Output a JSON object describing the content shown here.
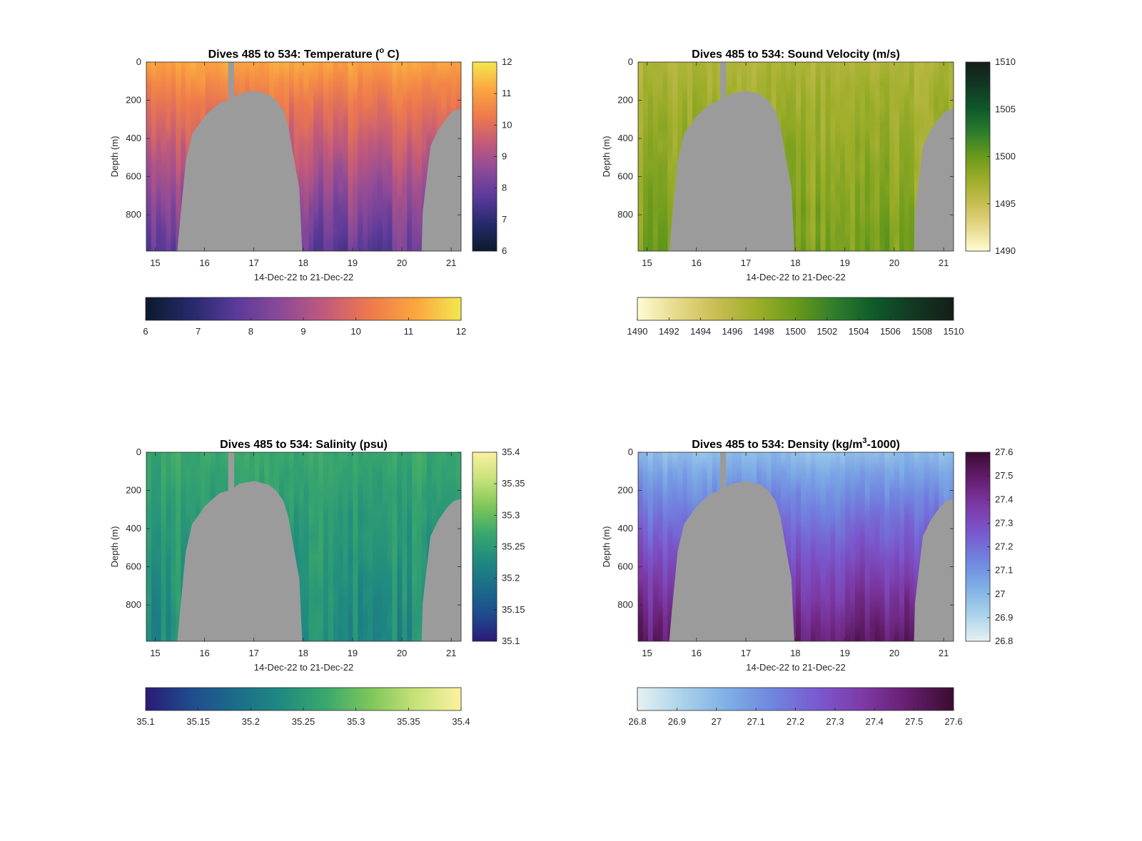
{
  "shared": {
    "ylabel": "Depth (m)",
    "xlabel": "14-Dec-22 to 21-Dec-22",
    "x_ticks": [
      "15",
      "16",
      "17",
      "18",
      "19",
      "20",
      "21"
    ],
    "y_ticks": [
      "0",
      "200",
      "400",
      "600",
      "800"
    ],
    "bathymetry_color": "#9b9b9b"
  },
  "chart_data": [
    {
      "type": "heatmap",
      "title_main": "Dives 485 to 534: Temperature (",
      "title_sup": "o",
      "title_tail": " C)",
      "xlabel": "14-Dec-22 to 21-Dec-22",
      "ylabel": "Depth (m)",
      "xlim": [
        14.82,
        21.2
      ],
      "ylim": [
        0,
        990
      ],
      "y_reversed": true,
      "colormap": [
        "#0b1a2c",
        "#252a6b",
        "#5a3a9a",
        "#8c4a98",
        "#c35a7a",
        "#ee7a4b",
        "#fba63e",
        "#f2e84f"
      ],
      "color_range": [
        6,
        12
      ],
      "right_colorbar_ticks": [
        "6",
        "7",
        "8",
        "9",
        "10",
        "11",
        "12"
      ],
      "bottom_colorbar_ticks": [
        "6",
        "7",
        "8",
        "9",
        "10",
        "11",
        "12"
      ],
      "surface_value": 11.1,
      "bottom_value": 7.9,
      "grey_gap_x": [
        16.48,
        16.6
      ],
      "seabed_profile": [
        [
          15.45,
          990
        ],
        [
          15.5,
          840
        ],
        [
          15.62,
          520
        ],
        [
          15.75,
          375
        ],
        [
          15.88,
          330
        ],
        [
          16.0,
          285
        ],
        [
          16.12,
          255
        ],
        [
          16.3,
          215
        ],
        [
          16.55,
          195
        ],
        [
          16.7,
          165
        ],
        [
          17.0,
          150
        ],
        [
          17.3,
          170
        ],
        [
          17.45,
          200
        ],
        [
          17.6,
          255
        ],
        [
          17.7,
          340
        ],
        [
          17.8,
          490
        ],
        [
          17.92,
          660
        ],
        [
          17.98,
          990
        ],
        [
          20.4,
          990
        ],
        [
          20.42,
          790
        ],
        [
          20.58,
          440
        ],
        [
          20.75,
          350
        ],
        [
          20.92,
          290
        ],
        [
          21.05,
          255
        ],
        [
          21.2,
          245
        ]
      ]
    },
    {
      "type": "heatmap",
      "title_main": "Dives 485 to 534: Sound Velocity (m/s)",
      "xlabel": "14-Dec-22 to 21-Dec-22",
      "ylabel": "Depth (m)",
      "xlim": [
        14.82,
        21.2
      ],
      "ylim": [
        0,
        990
      ],
      "y_reversed": true,
      "colormap": [
        "#fefcd2",
        "#e6d98a",
        "#c8bd52",
        "#9eae2a",
        "#6a9a1b",
        "#2f7d2c",
        "#0e5a2a",
        "#123823",
        "#141e18"
      ],
      "color_range": [
        1490,
        1510
      ],
      "right_colorbar_ticks": [
        "1490",
        "1495",
        "1500",
        "1505",
        "1510"
      ],
      "bottom_colorbar_ticks": [
        "1490",
        "1492",
        "1494",
        "1496",
        "1498",
        "1500",
        "1502",
        "1504",
        "1506",
        "1508",
        "1510"
      ],
      "surface_value": 1496.5,
      "bottom_value": 1499.2,
      "grey_gap_x": [
        16.48,
        16.6
      ],
      "seabed_profile": [
        [
          15.45,
          990
        ],
        [
          15.5,
          840
        ],
        [
          15.62,
          520
        ],
        [
          15.75,
          375
        ],
        [
          15.88,
          330
        ],
        [
          16.0,
          285
        ],
        [
          16.12,
          255
        ],
        [
          16.3,
          215
        ],
        [
          16.55,
          195
        ],
        [
          16.7,
          165
        ],
        [
          17.0,
          150
        ],
        [
          17.3,
          170
        ],
        [
          17.45,
          200
        ],
        [
          17.6,
          255
        ],
        [
          17.7,
          340
        ],
        [
          17.8,
          490
        ],
        [
          17.92,
          660
        ],
        [
          17.98,
          990
        ],
        [
          20.4,
          990
        ],
        [
          20.42,
          790
        ],
        [
          20.58,
          440
        ],
        [
          20.75,
          350
        ],
        [
          20.92,
          290
        ],
        [
          21.05,
          255
        ],
        [
          21.2,
          245
        ]
      ]
    },
    {
      "type": "heatmap",
      "title_main": "Dives 485 to 534: Salinity (psu)",
      "xlabel": "14-Dec-22 to 21-Dec-22",
      "ylabel": "Depth (m)",
      "xlim": [
        14.82,
        21.2
      ],
      "ylim": [
        0,
        990
      ],
      "y_reversed": true,
      "colormap": [
        "#2b1a76",
        "#1f4c8e",
        "#1b6c8a",
        "#1f8a80",
        "#3aa86c",
        "#7ec65a",
        "#c7e27a",
        "#fbf1a0"
      ],
      "color_range": [
        35.1,
        35.4
      ],
      "right_colorbar_ticks": [
        "35.1",
        "35.15",
        "35.2",
        "35.25",
        "35.3",
        "35.35",
        "35.4"
      ],
      "bottom_colorbar_ticks": [
        "35.1",
        "35.15",
        "35.2",
        "35.25",
        "35.3",
        "35.35",
        "35.4"
      ],
      "surface_value": 35.27,
      "bottom_value": 35.23,
      "grey_gap_x": [
        16.48,
        16.6
      ],
      "seabed_profile": [
        [
          15.45,
          990
        ],
        [
          15.5,
          840
        ],
        [
          15.62,
          520
        ],
        [
          15.75,
          375
        ],
        [
          15.88,
          330
        ],
        [
          16.0,
          285
        ],
        [
          16.12,
          255
        ],
        [
          16.3,
          215
        ],
        [
          16.55,
          195
        ],
        [
          16.7,
          165
        ],
        [
          17.0,
          150
        ],
        [
          17.3,
          170
        ],
        [
          17.45,
          200
        ],
        [
          17.6,
          255
        ],
        [
          17.7,
          340
        ],
        [
          17.8,
          490
        ],
        [
          17.92,
          660
        ],
        [
          17.98,
          990
        ],
        [
          20.4,
          990
        ],
        [
          20.42,
          790
        ],
        [
          20.58,
          440
        ],
        [
          20.75,
          350
        ],
        [
          20.92,
          290
        ],
        [
          21.05,
          255
        ],
        [
          21.2,
          245
        ]
      ]
    },
    {
      "type": "heatmap",
      "title_main": "Dives 485 to 534: Density (kg/m",
      "title_sup": "3",
      "title_tail": "-1000)",
      "xlabel": "14-Dec-22 to 21-Dec-22",
      "ylabel": "Depth (m)",
      "xlim": [
        14.82,
        21.2
      ],
      "ylim": [
        0,
        990
      ],
      "y_reversed": true,
      "colormap": [
        "#e6f1f2",
        "#a9d2ea",
        "#7eaee6",
        "#6f85df",
        "#7a59cf",
        "#7d3aa6",
        "#651e6f",
        "#3a0c30"
      ],
      "color_range": [
        26.8,
        27.6
      ],
      "right_colorbar_ticks": [
        "26.8",
        "26.9",
        "27",
        "27.1",
        "27.2",
        "27.3",
        "27.4",
        "27.5",
        "27.6"
      ],
      "bottom_colorbar_ticks": [
        "26.8",
        "26.9",
        "27",
        "27.1",
        "27.2",
        "27.3",
        "27.4",
        "27.5",
        "27.6"
      ],
      "surface_value": 26.98,
      "bottom_value": 27.5,
      "grey_gap_x": [
        16.48,
        16.6
      ],
      "seabed_profile": [
        [
          15.45,
          990
        ],
        [
          15.5,
          840
        ],
        [
          15.62,
          520
        ],
        [
          15.75,
          375
        ],
        [
          15.88,
          330
        ],
        [
          16.0,
          285
        ],
        [
          16.12,
          255
        ],
        [
          16.3,
          215
        ],
        [
          16.55,
          195
        ],
        [
          16.7,
          165
        ],
        [
          17.0,
          150
        ],
        [
          17.3,
          170
        ],
        [
          17.45,
          200
        ],
        [
          17.6,
          255
        ],
        [
          17.7,
          340
        ],
        [
          17.8,
          490
        ],
        [
          17.92,
          660
        ],
        [
          17.98,
          990
        ],
        [
          20.4,
          990
        ],
        [
          20.42,
          790
        ],
        [
          20.58,
          440
        ],
        [
          20.75,
          350
        ],
        [
          20.92,
          290
        ],
        [
          21.05,
          255
        ],
        [
          21.2,
          245
        ]
      ]
    }
  ]
}
